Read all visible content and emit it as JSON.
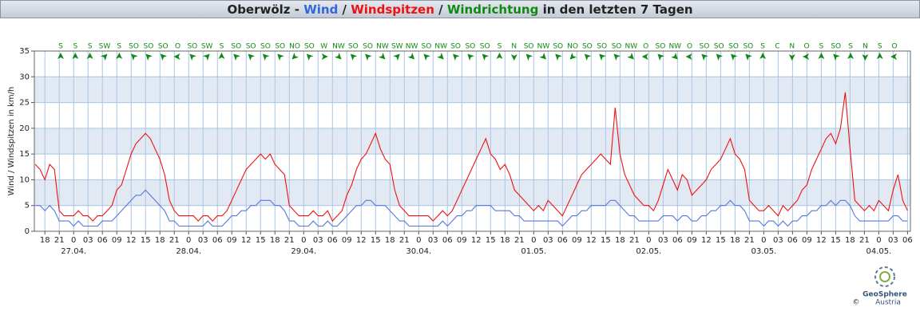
{
  "chart_data": {
    "type": "line",
    "title_parts": [
      {
        "text": "Oberwölz - ",
        "color": "#222222"
      },
      {
        "text": "Wind",
        "color": "#3366dd"
      },
      {
        "text": " / ",
        "color": "#222222"
      },
      {
        "text": "Windspitzen",
        "color": "#ee1111"
      },
      {
        "text": " / ",
        "color": "#222222"
      },
      {
        "text": "Windrichtung",
        "color": "#118811"
      },
      {
        "text": " in den letzten 7 Tagen",
        "color": "#222222"
      }
    ],
    "y_label": "Wind / Windspitzen in km/h",
    "ylim": [
      0,
      35
    ],
    "yticks": [
      0,
      5,
      10,
      15,
      20,
      25,
      30,
      35
    ],
    "xlim": [
      -8.2,
      174.6
    ],
    "xticks": [
      {
        "value": -6,
        "label": "18"
      },
      {
        "value": -3,
        "label": "21"
      },
      {
        "value": 0,
        "label": "0"
      },
      {
        "value": 3,
        "label": "03"
      },
      {
        "value": 6,
        "label": "06"
      },
      {
        "value": 9,
        "label": "09"
      },
      {
        "value": 12,
        "label": "12"
      },
      {
        "value": 15,
        "label": "15"
      },
      {
        "value": 18,
        "label": "18"
      },
      {
        "value": 21,
        "label": "21"
      },
      {
        "value": 24,
        "label": "0"
      },
      {
        "value": 27,
        "label": "03"
      },
      {
        "value": 30,
        "label": "06"
      },
      {
        "value": 33,
        "label": "09"
      },
      {
        "value": 36,
        "label": "12"
      },
      {
        "value": 39,
        "label": "15"
      },
      {
        "value": 42,
        "label": "18"
      },
      {
        "value": 45,
        "label": "21"
      },
      {
        "value": 48,
        "label": "0"
      },
      {
        "value": 51,
        "label": "03"
      },
      {
        "value": 54,
        "label": "06"
      },
      {
        "value": 57,
        "label": "09"
      },
      {
        "value": 60,
        "label": "12"
      },
      {
        "value": 63,
        "label": "15"
      },
      {
        "value": 66,
        "label": "18"
      },
      {
        "value": 69,
        "label": "21"
      },
      {
        "value": 72,
        "label": "0"
      },
      {
        "value": 75,
        "label": "03"
      },
      {
        "value": 78,
        "label": "06"
      },
      {
        "value": 81,
        "label": "09"
      },
      {
        "value": 84,
        "label": "12"
      },
      {
        "value": 87,
        "label": "15"
      },
      {
        "value": 90,
        "label": "18"
      },
      {
        "value": 93,
        "label": "21"
      },
      {
        "value": 96,
        "label": "0"
      },
      {
        "value": 99,
        "label": "03"
      },
      {
        "value": 102,
        "label": "06"
      },
      {
        "value": 105,
        "label": "09"
      },
      {
        "value": 108,
        "label": "12"
      },
      {
        "value": 111,
        "label": "15"
      },
      {
        "value": 114,
        "label": "18"
      },
      {
        "value": 117,
        "label": "21"
      },
      {
        "value": 120,
        "label": "0"
      },
      {
        "value": 123,
        "label": "03"
      },
      {
        "value": 126,
        "label": "06"
      },
      {
        "value": 129,
        "label": "09"
      },
      {
        "value": 132,
        "label": "12"
      },
      {
        "value": 135,
        "label": "15"
      },
      {
        "value": 138,
        "label": "18"
      },
      {
        "value": 141,
        "label": "21"
      },
      {
        "value": 144,
        "label": "0"
      },
      {
        "value": 147,
        "label": "03"
      },
      {
        "value": 150,
        "label": "06"
      },
      {
        "value": 153,
        "label": "09"
      },
      {
        "value": 156,
        "label": "12"
      },
      {
        "value": 159,
        "label": "15"
      },
      {
        "value": 162,
        "label": "18"
      },
      {
        "value": 165,
        "label": "21"
      },
      {
        "value": 168,
        "label": "0"
      },
      {
        "value": 171,
        "label": "03"
      },
      {
        "value": 174,
        "label": "06"
      }
    ],
    "date_labels": [
      {
        "value": 0,
        "label": "27.04."
      },
      {
        "value": 24,
        "label": "28.04."
      },
      {
        "value": 48,
        "label": "29.04."
      },
      {
        "value": 72,
        "label": "30.04."
      },
      {
        "value": 96,
        "label": "01.05."
      },
      {
        "value": 120,
        "label": "02.05."
      },
      {
        "value": 144,
        "label": "03.05."
      },
      {
        "value": 168,
        "label": "04.05."
      }
    ],
    "grid": true,
    "bands": true,
    "wind_directions": [
      "S",
      "S",
      "S",
      "SW",
      "S",
      "SO",
      "SO",
      "SO",
      "O",
      "SO",
      "SW",
      "S",
      "SO",
      "SO",
      "SO",
      "SO",
      "NO",
      "SO",
      "W",
      "NW",
      "SO",
      "SO",
      "NW",
      "SW",
      "NW",
      "SO",
      "NW",
      "SO",
      "SO",
      "SO",
      "S",
      "N",
      "SO",
      "NW",
      "SO",
      "NO",
      "SO",
      "SO",
      "SO",
      "NW",
      "O",
      "SO",
      "NW",
      "O",
      "SO",
      "SO",
      "SO",
      "SO",
      "S",
      "C",
      "N",
      "O",
      "S",
      "SO",
      "S",
      "N",
      "S",
      "O"
    ],
    "direction_color": "#118811",
    "x": [
      -8,
      -7,
      -6,
      -5,
      -4,
      -3,
      -2,
      -1,
      0,
      1,
      2,
      3,
      4,
      5,
      6,
      7,
      8,
      9,
      10,
      11,
      12,
      13,
      14,
      15,
      16,
      17,
      18,
      19,
      20,
      21,
      22,
      23,
      24,
      25,
      26,
      27,
      28,
      29,
      30,
      31,
      32,
      33,
      34,
      35,
      36,
      37,
      38,
      39,
      40,
      41,
      42,
      43,
      44,
      45,
      46,
      47,
      48,
      49,
      50,
      51,
      52,
      53,
      54,
      55,
      56,
      57,
      58,
      59,
      60,
      61,
      62,
      63,
      64,
      65,
      66,
      67,
      68,
      69,
      70,
      71,
      72,
      73,
      74,
      75,
      76,
      77,
      78,
      79,
      80,
      81,
      82,
      83,
      84,
      85,
      86,
      87,
      88,
      89,
      90,
      91,
      92,
      93,
      94,
      95,
      96,
      97,
      98,
      99,
      100,
      101,
      102,
      103,
      104,
      105,
      106,
      107,
      108,
      109,
      110,
      111,
      112,
      113,
      114,
      115,
      116,
      117,
      118,
      119,
      120,
      121,
      122,
      123,
      124,
      125,
      126,
      127,
      128,
      129,
      130,
      131,
      132,
      133,
      134,
      135,
      136,
      137,
      138,
      139,
      140,
      141,
      142,
      143,
      144,
      145,
      146,
      147,
      148,
      149,
      150,
      151,
      152,
      153,
      154,
      155,
      156,
      157,
      158,
      159,
      160,
      161,
      162,
      163,
      164,
      165,
      166,
      167,
      168,
      169,
      170,
      171,
      172,
      173,
      174
    ],
    "series": [
      {
        "color": "#ee1111",
        "values": [
          13,
          12,
          10,
          13,
          12,
          4,
          3,
          3,
          3,
          4,
          3,
          3,
          2,
          3,
          3,
          4,
          5,
          8,
          9,
          12,
          15,
          17,
          18,
          19,
          18,
          16,
          14,
          11,
          6,
          4,
          3,
          3,
          3,
          3,
          2,
          3,
          3,
          2,
          3,
          3,
          4,
          6,
          8,
          10,
          12,
          13,
          14,
          15,
          14,
          15,
          13,
          12,
          11,
          5,
          4,
          3,
          3,
          3,
          4,
          3,
          3,
          4,
          2,
          3,
          4,
          7,
          9,
          12,
          14,
          15,
          17,
          19,
          16,
          14,
          13,
          8,
          5,
          4,
          3,
          3,
          3,
          3,
          3,
          2,
          3,
          4,
          3,
          4,
          6,
          8,
          10,
          12,
          14,
          16,
          18,
          15,
          14,
          12,
          13,
          11,
          8,
          7,
          6,
          5,
          4,
          5,
          4,
          6,
          5,
          4,
          3,
          5,
          7,
          9,
          11,
          12,
          13,
          14,
          15,
          14,
          13,
          24,
          15,
          11,
          9,
          7,
          6,
          5,
          5,
          4,
          6,
          9,
          12,
          10,
          8,
          11,
          10,
          7,
          8,
          9,
          10,
          12,
          13,
          14,
          16,
          18,
          15,
          14,
          12,
          6,
          5,
          4,
          4,
          5,
          4,
          3,
          5,
          4,
          5,
          6,
          8,
          9,
          12,
          14,
          16,
          18,
          19,
          17,
          20,
          27,
          16,
          6,
          5,
          4,
          5,
          4,
          6,
          5,
          4,
          8,
          11,
          6,
          4
        ]
      },
      {
        "color": "#5577dd",
        "values": [
          5,
          5,
          4,
          5,
          4,
          2,
          2,
          2,
          1,
          2,
          1,
          1,
          1,
          1,
          2,
          2,
          2,
          3,
          4,
          5,
          6,
          7,
          7,
          8,
          7,
          6,
          5,
          4,
          2,
          2,
          1,
          1,
          1,
          1,
          1,
          1,
          2,
          1,
          1,
          1,
          2,
          3,
          3,
          4,
          4,
          5,
          5,
          6,
          6,
          6,
          5,
          5,
          4,
          2,
          2,
          1,
          1,
          1,
          2,
          1,
          1,
          2,
          1,
          1,
          2,
          3,
          4,
          5,
          5,
          6,
          6,
          5,
          5,
          5,
          4,
          3,
          2,
          2,
          1,
          1,
          1,
          1,
          1,
          1,
          1,
          2,
          1,
          2,
          3,
          3,
          4,
          4,
          5,
          5,
          5,
          5,
          4,
          4,
          4,
          4,
          3,
          3,
          2,
          2,
          2,
          2,
          2,
          2,
          2,
          2,
          1,
          2,
          3,
          3,
          4,
          4,
          5,
          5,
          5,
          5,
          6,
          6,
          5,
          4,
          3,
          3,
          2,
          2,
          2,
          2,
          2,
          3,
          3,
          3,
          2,
          3,
          3,
          2,
          2,
          3,
          3,
          4,
          4,
          5,
          5,
          6,
          5,
          5,
          4,
          2,
          2,
          2,
          1,
          2,
          2,
          1,
          2,
          1,
          2,
          2,
          3,
          3,
          4,
          4,
          5,
          5,
          6,
          5,
          6,
          6,
          5,
          3,
          2,
          2,
          2,
          2,
          2,
          2,
          2,
          3,
          3,
          2,
          2
        ]
      }
    ],
    "logo": {
      "name": "GeoSphere",
      "sub": "Austria",
      "copyright": "©"
    }
  }
}
